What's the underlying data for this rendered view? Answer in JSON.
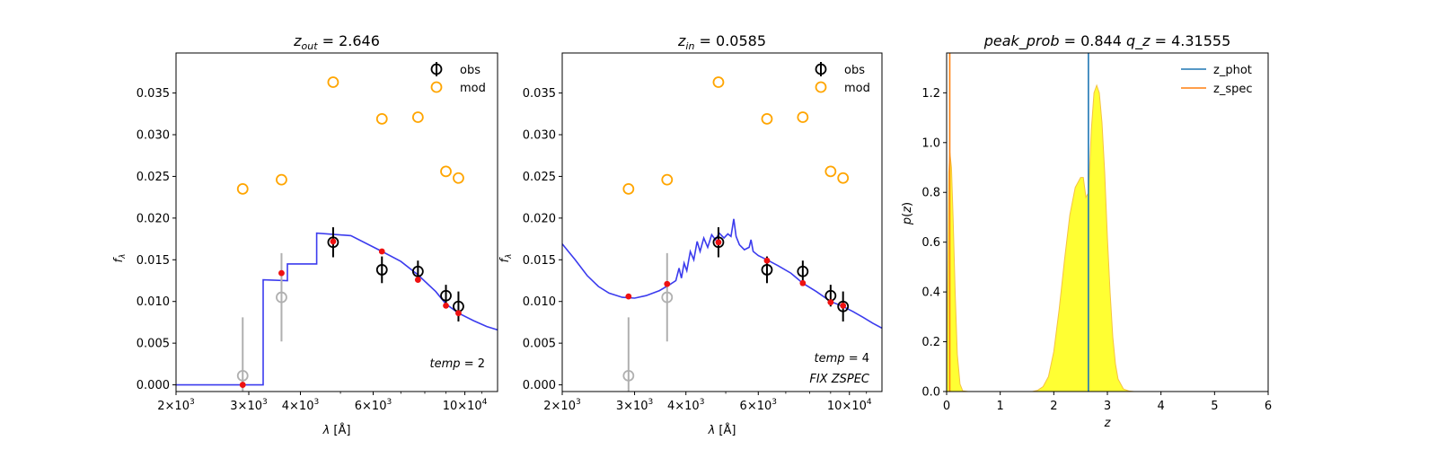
{
  "chart_data": [
    {
      "type": "scatter",
      "title_var": "z",
      "title_sub": "out",
      "title_value": "= 2.646",
      "xlabel": "λ [Å]",
      "ylabel": "f_λ",
      "xscale": "log",
      "xlim": [
        2000,
        12000
      ],
      "ylim": [
        -0.0008,
        0.0398
      ],
      "xticks": [
        {
          "value": 2000,
          "mant": "2",
          "exp": "3"
        },
        {
          "value": 3000,
          "mant": "3",
          "exp": "3"
        },
        {
          "value": 4000,
          "mant": "4",
          "exp": "3"
        },
        {
          "value": 6000,
          "mant": "6",
          "exp": "3"
        },
        {
          "value": 10000,
          "mant": "10",
          "exp": "4"
        }
      ],
      "yticks": [
        0.0,
        0.005,
        0.01,
        0.015,
        0.02,
        0.025,
        0.03,
        0.035
      ],
      "ytick_labels": [
        "0.000",
        "0.005",
        "0.010",
        "0.015",
        "0.020",
        "0.025",
        "0.030",
        "0.035"
      ],
      "legend": {
        "position": "top-right",
        "entries": [
          "obs",
          "mod"
        ]
      },
      "annotations": [
        "temp = 2"
      ],
      "obs": [
        {
          "x": 4800,
          "y": 0.0171,
          "err": 0.0018
        },
        {
          "x": 6300,
          "y": 0.0138,
          "err": 0.0016
        },
        {
          "x": 7700,
          "y": 0.0136,
          "err": 0.0013
        },
        {
          "x": 9000,
          "y": 0.0107,
          "err": 0.0013
        },
        {
          "x": 9650,
          "y": 0.0094,
          "err": 0.0018
        }
      ],
      "obs_faint": [
        {
          "x": 2900,
          "y": 0.0011,
          "err": 0.007
        },
        {
          "x": 3600,
          "y": 0.0105,
          "err": 0.0053
        }
      ],
      "mod": [
        {
          "x": 2900,
          "y": 0.0235
        },
        {
          "x": 3600,
          "y": 0.0246
        },
        {
          "x": 4800,
          "y": 0.0363
        },
        {
          "x": 6300,
          "y": 0.0319
        },
        {
          "x": 7700,
          "y": 0.0321
        },
        {
          "x": 9000,
          "y": 0.0256
        },
        {
          "x": 9650,
          "y": 0.0248
        }
      ],
      "synth": [
        {
          "x": 2900,
          "y": 0.0
        },
        {
          "x": 3600,
          "y": 0.0134
        },
        {
          "x": 4800,
          "y": 0.0172
        },
        {
          "x": 6300,
          "y": 0.016
        },
        {
          "x": 7700,
          "y": 0.0126
        },
        {
          "x": 9000,
          "y": 0.0095
        },
        {
          "x": 9650,
          "y": 0.0086
        }
      ],
      "sed_line": [
        [
          2000,
          0.0
        ],
        [
          3150,
          0.0
        ],
        [
          3250,
          0.0
        ],
        [
          3250,
          0.0126
        ],
        [
          3720,
          0.0125
        ],
        [
          3720,
          0.0145
        ],
        [
          4380,
          0.0145
        ],
        [
          4380,
          0.0182
        ],
        [
          5300,
          0.0179
        ],
        [
          6300,
          0.016
        ],
        [
          7000,
          0.0148
        ],
        [
          7700,
          0.0132
        ],
        [
          8500,
          0.0112
        ],
        [
          9000,
          0.0097
        ],
        [
          9650,
          0.0086
        ],
        [
          10500,
          0.0077
        ],
        [
          11300,
          0.007
        ],
        [
          12000,
          0.0066
        ]
      ]
    },
    {
      "type": "scatter",
      "title_var": "z",
      "title_sub": "in",
      "title_value": "= 0.0585",
      "xlabel": "λ [Å]",
      "ylabel": "f_λ",
      "xscale": "log",
      "xlim": [
        2000,
        12000
      ],
      "ylim": [
        -0.0008,
        0.0398
      ],
      "xticks": [
        {
          "value": 2000,
          "mant": "2",
          "exp": "3"
        },
        {
          "value": 3000,
          "mant": "3",
          "exp": "3"
        },
        {
          "value": 4000,
          "mant": "4",
          "exp": "3"
        },
        {
          "value": 6000,
          "mant": "6",
          "exp": "3"
        },
        {
          "value": 10000,
          "mant": "10",
          "exp": "4"
        }
      ],
      "yticks": [
        0.0,
        0.005,
        0.01,
        0.015,
        0.02,
        0.025,
        0.03,
        0.035
      ],
      "ytick_labels": [
        "0.000",
        "0.005",
        "0.010",
        "0.015",
        "0.020",
        "0.025",
        "0.030",
        "0.035"
      ],
      "legend": {
        "position": "top-right",
        "entries": [
          "obs",
          "mod"
        ]
      },
      "annotations": [
        "temp = 4",
        "FIX ZSPEC"
      ],
      "obs": [
        {
          "x": 4800,
          "y": 0.0171,
          "err": 0.0018
        },
        {
          "x": 6300,
          "y": 0.0138,
          "err": 0.0016
        },
        {
          "x": 7700,
          "y": 0.0136,
          "err": 0.0013
        },
        {
          "x": 9000,
          "y": 0.0107,
          "err": 0.0013
        },
        {
          "x": 9650,
          "y": 0.0094,
          "err": 0.0018
        }
      ],
      "obs_faint": [
        {
          "x": 2900,
          "y": 0.0011,
          "err": 0.007
        },
        {
          "x": 3600,
          "y": 0.0105,
          "err": 0.0053
        }
      ],
      "mod": [
        {
          "x": 2900,
          "y": 0.0235
        },
        {
          "x": 3600,
          "y": 0.0246
        },
        {
          "x": 4800,
          "y": 0.0363
        },
        {
          "x": 6300,
          "y": 0.0319
        },
        {
          "x": 7700,
          "y": 0.0321
        },
        {
          "x": 9000,
          "y": 0.0256
        },
        {
          "x": 9650,
          "y": 0.0248
        }
      ],
      "synth": [
        {
          "x": 2900,
          "y": 0.0106
        },
        {
          "x": 3600,
          "y": 0.0121
        },
        {
          "x": 4800,
          "y": 0.0171
        },
        {
          "x": 6300,
          "y": 0.0149
        },
        {
          "x": 7700,
          "y": 0.0122
        },
        {
          "x": 9000,
          "y": 0.0099
        },
        {
          "x": 9650,
          "y": 0.0095
        }
      ],
      "sed_line": [
        [
          2000,
          0.0169
        ],
        [
          2150,
          0.015
        ],
        [
          2300,
          0.0131
        ],
        [
          2450,
          0.0118
        ],
        [
          2600,
          0.011
        ],
        [
          2800,
          0.0105
        ],
        [
          3000,
          0.0104
        ],
        [
          3200,
          0.0107
        ],
        [
          3450,
          0.0113
        ],
        [
          3650,
          0.012
        ],
        [
          3780,
          0.0125
        ],
        [
          3850,
          0.014
        ],
        [
          3900,
          0.0128
        ],
        [
          3960,
          0.0146
        ],
        [
          4020,
          0.0137
        ],
        [
          4100,
          0.016
        ],
        [
          4180,
          0.015
        ],
        [
          4260,
          0.0172
        ],
        [
          4330,
          0.016
        ],
        [
          4420,
          0.0176
        ],
        [
          4520,
          0.0165
        ],
        [
          4620,
          0.018
        ],
        [
          4720,
          0.0174
        ],
        [
          4820,
          0.0182
        ],
        [
          4950,
          0.0176
        ],
        [
          5060,
          0.0181
        ],
        [
          5150,
          0.0178
        ],
        [
          5230,
          0.0199
        ],
        [
          5300,
          0.0178
        ],
        [
          5400,
          0.0168
        ],
        [
          5550,
          0.0162
        ],
        [
          5700,
          0.0165
        ],
        [
          5760,
          0.0174
        ],
        [
          5830,
          0.016
        ],
        [
          6000,
          0.0155
        ],
        [
          6300,
          0.015
        ],
        [
          6700,
          0.0143
        ],
        [
          7200,
          0.0134
        ],
        [
          7700,
          0.0122
        ],
        [
          8300,
          0.0112
        ],
        [
          9000,
          0.01
        ],
        [
          9650,
          0.0094
        ],
        [
          10200,
          0.0088
        ],
        [
          10800,
          0.0081
        ],
        [
          11400,
          0.0074
        ],
        [
          12000,
          0.0068
        ]
      ]
    },
    {
      "type": "area",
      "title": "peak_prob = 0.844     q_z = 4.31555",
      "xlabel": "z",
      "ylabel": "p(z)",
      "xlim": [
        0,
        6
      ],
      "ylim": [
        0,
        1.36
      ],
      "xticks": [
        0,
        1,
        2,
        3,
        4,
        5,
        6
      ],
      "xtick_labels": [
        "0",
        "1",
        "2",
        "3",
        "4",
        "5",
        "6"
      ],
      "yticks": [
        0.0,
        0.2,
        0.4,
        0.6,
        0.8,
        1.0,
        1.2
      ],
      "ytick_labels": [
        "0.0",
        "0.2",
        "0.4",
        "0.6",
        "0.8",
        "1.0",
        "1.2"
      ],
      "legend": {
        "position": "top-right",
        "entries": [
          "z_phot",
          "z_spec"
        ]
      },
      "z_phot": 2.646,
      "z_spec": 0.0585,
      "pz": [
        [
          0.0,
          0.0
        ],
        [
          0.04,
          0.88
        ],
        [
          0.06,
          0.96
        ],
        [
          0.09,
          0.9
        ],
        [
          0.12,
          0.7
        ],
        [
          0.16,
          0.4
        ],
        [
          0.2,
          0.15
        ],
        [
          0.25,
          0.03
        ],
        [
          0.3,
          0.003
        ],
        [
          0.4,
          0.0
        ],
        [
          1.6,
          0.0
        ],
        [
          1.7,
          0.005
        ],
        [
          1.8,
          0.02
        ],
        [
          1.9,
          0.06
        ],
        [
          2.0,
          0.16
        ],
        [
          2.1,
          0.33
        ],
        [
          2.2,
          0.53
        ],
        [
          2.3,
          0.71
        ],
        [
          2.4,
          0.82
        ],
        [
          2.5,
          0.86
        ],
        [
          2.55,
          0.86
        ],
        [
          2.6,
          0.78
        ],
        [
          2.65,
          0.8
        ],
        [
          2.7,
          1.05
        ],
        [
          2.75,
          1.2
        ],
        [
          2.8,
          1.23
        ],
        [
          2.85,
          1.2
        ],
        [
          2.9,
          1.08
        ],
        [
          2.95,
          0.88
        ],
        [
          3.0,
          0.62
        ],
        [
          3.05,
          0.4
        ],
        [
          3.1,
          0.22
        ],
        [
          3.15,
          0.11
        ],
        [
          3.2,
          0.05
        ],
        [
          3.3,
          0.01
        ],
        [
          3.4,
          0.002
        ],
        [
          3.5,
          0.0
        ],
        [
          6.0,
          0.0
        ]
      ],
      "colors": {
        "z_phot": "#1f77b4",
        "z_spec": "#ff7f0e",
        "fill": "#ffff33",
        "edge": "#f5c242"
      }
    }
  ],
  "colors": {
    "obs": "#000000",
    "obs_faint": "#b0b0b0",
    "mod": "#ffa500",
    "synth": "#ee1111",
    "sed": "#3b3bee"
  }
}
